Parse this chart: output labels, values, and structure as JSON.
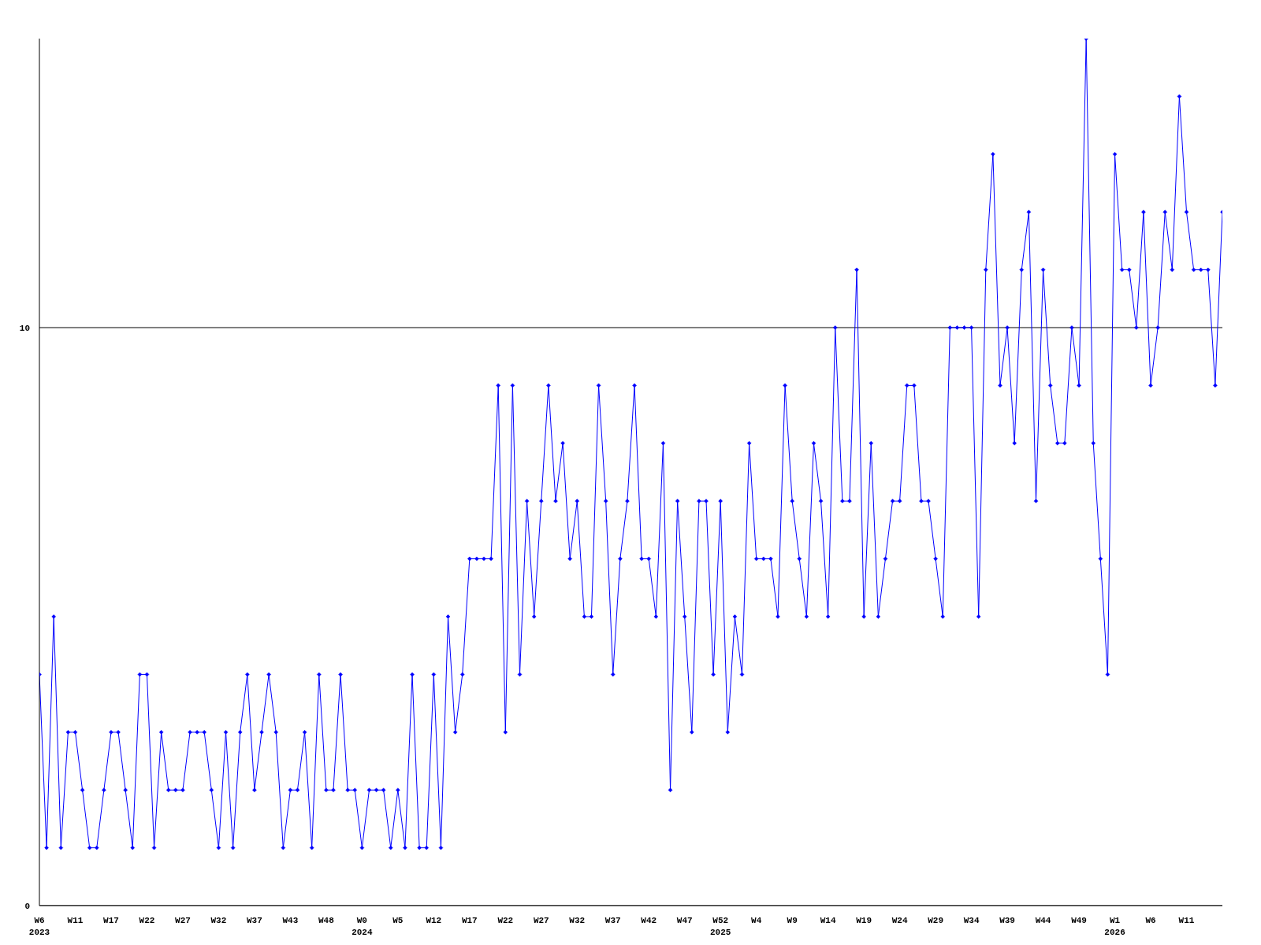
{
  "chart_data": {
    "type": "line",
    "categories": [
      "W6\n2023",
      null,
      null,
      null,
      null,
      "W11",
      null,
      null,
      null,
      null,
      "W17",
      null,
      null,
      null,
      null,
      "W22",
      null,
      null,
      null,
      null,
      "W27",
      null,
      null,
      null,
      null,
      "W32",
      null,
      null,
      null,
      null,
      "W37",
      null,
      null,
      null,
      null,
      "W43",
      null,
      null,
      null,
      null,
      "W48",
      null,
      null,
      null,
      null,
      "W0\n2024",
      null,
      null,
      null,
      null,
      "W5",
      null,
      null,
      null,
      null,
      "W12",
      null,
      null,
      null,
      null,
      "W17",
      null,
      null,
      null,
      null,
      "W22",
      null,
      null,
      null,
      null,
      "W27",
      null,
      null,
      null,
      null,
      "W32",
      null,
      null,
      null,
      null,
      "W37",
      null,
      null,
      null,
      null,
      "W42",
      null,
      null,
      null,
      null,
      "W47",
      null,
      null,
      null,
      null,
      "W52\n2025",
      null,
      null,
      null,
      null,
      "W4",
      null,
      null,
      null,
      null,
      "W9",
      null,
      null,
      null,
      null,
      "W14",
      null,
      null,
      null,
      null,
      "W19",
      null,
      null,
      null,
      null,
      "W24",
      null,
      null,
      null,
      null,
      "W29",
      null,
      null,
      null,
      null,
      "W34",
      null,
      null,
      null,
      null,
      "W39",
      null,
      null,
      null,
      null,
      "W44",
      null,
      null,
      null,
      null,
      "W49",
      null,
      null,
      null,
      null,
      "W1\n2026",
      null,
      null,
      null,
      null,
      "W6",
      null,
      null,
      null,
      null,
      "W11",
      null,
      null,
      null,
      null,
      null
    ],
    "series": [
      {
        "color": "#0000ff",
        "values": [
          4,
          1,
          5,
          1,
          3,
          3,
          2,
          1,
          1,
          2,
          3,
          3,
          2,
          1,
          4,
          4,
          1,
          3,
          2,
          2,
          2,
          3,
          3,
          3,
          2,
          1,
          3,
          1,
          3,
          4,
          2,
          3,
          4,
          3,
          1,
          2,
          2,
          3,
          1,
          4,
          2,
          2,
          4,
          2,
          2,
          1,
          2,
          2,
          2,
          1,
          2,
          1,
          4,
          1,
          1,
          4,
          1,
          5,
          3,
          4,
          6,
          6,
          6,
          6,
          9,
          3,
          9,
          4,
          7,
          5,
          7,
          9,
          7,
          8,
          6,
          7,
          5,
          5,
          9,
          7,
          4,
          6,
          7,
          9,
          6,
          6,
          5,
          8,
          2,
          7,
          5,
          3,
          7,
          7,
          4,
          7,
          3,
          5,
          4,
          8,
          6,
          6,
          6,
          5,
          9,
          7,
          6,
          5,
          8,
          7,
          5,
          10,
          7,
          7,
          11,
          5,
          8,
          5,
          6,
          7,
          7,
          9,
          9,
          7,
          7,
          6,
          5,
          10,
          10,
          10,
          10,
          5,
          11,
          13,
          9,
          10,
          8,
          11,
          12,
          7,
          11,
          9,
          8,
          8,
          10,
          9,
          15,
          8,
          6,
          4,
          13,
          11,
          11,
          10,
          12,
          9,
          10,
          12,
          11,
          14,
          12,
          11,
          11,
          11,
          9,
          12
        ]
      }
    ],
    "ylim": [
      0,
      15
    ],
    "yticks": [
      0,
      10
    ],
    "grid": "y",
    "marker": "diamond",
    "line_style": "solid"
  }
}
